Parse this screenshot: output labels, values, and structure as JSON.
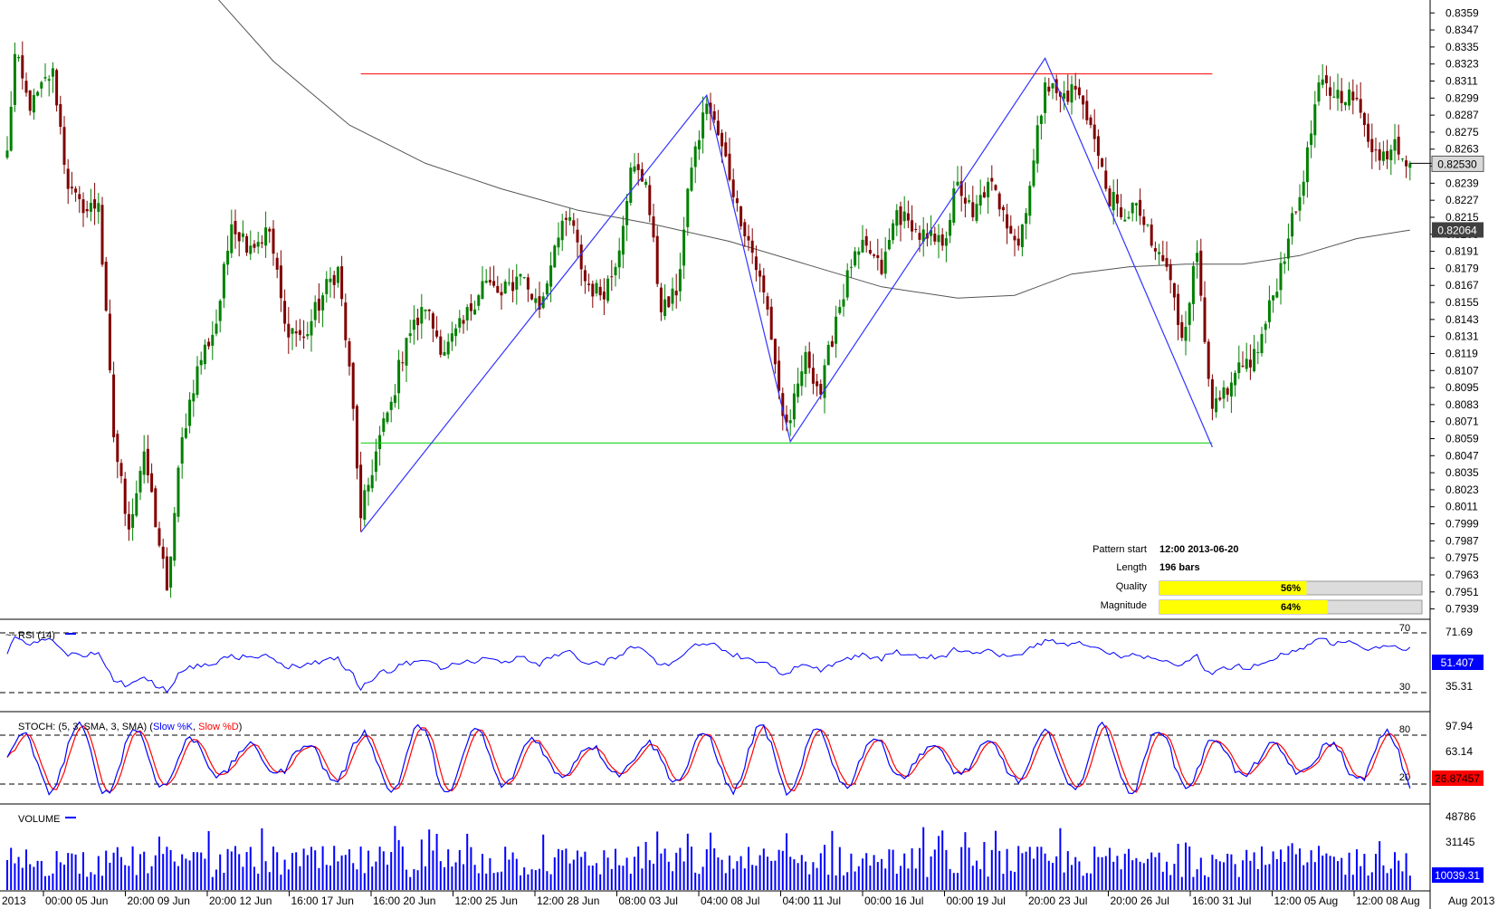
{
  "chart_data": [
    {
      "type": "candlestick",
      "panel": "price",
      "title": "",
      "y_ticks": [
        "0.8359",
        "0.8347",
        "0.8335",
        "0.8323",
        "0.8311",
        "0.8299",
        "0.8287",
        "0.8275",
        "0.8263",
        "0.8251",
        "0.8239",
        "0.8227",
        "0.8215",
        "0.8203",
        "0.8191",
        "0.8179",
        "0.8167",
        "0.8155",
        "0.8143",
        "0.8131",
        "0.8119",
        "0.8107",
        "0.8095",
        "0.8083",
        "0.8071",
        "0.8059",
        "0.8047",
        "0.8035",
        "0.8023",
        "0.8011",
        "0.7999",
        "0.7987",
        "0.7975",
        "0.7963",
        "0.7951",
        "0.7939"
      ],
      "ylim": [
        0.7933,
        0.8363
      ],
      "x_ticks": [
        "2013",
        "00:00 05 Jun",
        "20:00 09 Jun",
        "20:00 12 Jun",
        "16:00 17 Jun",
        "16:00 20 Jun",
        "12:00 25 Jun",
        "12:00 28 Jun",
        "08:00 03 Jul",
        "04:00 08 Jul",
        "04:00 11 Jul",
        "00:00 16 Jul",
        "00:00 19 Jul",
        "20:00 23 Jul",
        "20:00 26 Jul",
        "16:00 31 Jul",
        "12:00 05 Aug",
        "12:00 08 Aug",
        "Aug 2013"
      ],
      "last_price": "0.82530",
      "ma_label": "0.82064",
      "ma_value": 0.82064,
      "colors": {
        "up": "#008000",
        "down": "#800000",
        "ma": "#555555",
        "pattern": "#3333ff",
        "resistance": "#ff0000",
        "support": "#00cc00",
        "last_bg": "#d9d9d9"
      },
      "pattern": {
        "type": "zigzag",
        "points": [
          {
            "bar": 93,
            "price": 0.7993
          },
          {
            "bar": 184,
            "price": 0.8301
          },
          {
            "bar": 206,
            "price": 0.8057
          },
          {
            "bar": 273,
            "price": 0.8327
          },
          {
            "bar": 317,
            "price": 0.8053
          }
        ],
        "resistance": {
          "price": 0.8316,
          "from_bar": 93,
          "to_bar": 317
        },
        "support": {
          "price": 0.8056,
          "from_bar": 93,
          "to_bar": 317
        }
      },
      "info": {
        "pattern_start_label": "Pattern start",
        "pattern_start": "12:00 2013-06-20",
        "length_label": "Length",
        "length": "196 bars",
        "quality_label": "Quality",
        "quality": 56,
        "quality_text": "56%",
        "magnitude_label": "Magnitude",
        "magnitude": 64,
        "magnitude_text": "64%"
      },
      "anchors": [
        {
          "bar": 0,
          "price": 0.8262
        },
        {
          "bar": 2,
          "price": 0.833
        },
        {
          "bar": 6,
          "price": 0.829
        },
        {
          "bar": 12,
          "price": 0.832
        },
        {
          "bar": 16,
          "price": 0.8235
        },
        {
          "bar": 20,
          "price": 0.8218
        },
        {
          "bar": 24,
          "price": 0.8225
        },
        {
          "bar": 28,
          "price": 0.806
        },
        {
          "bar": 32,
          "price": 0.7995
        },
        {
          "bar": 36,
          "price": 0.805
        },
        {
          "bar": 42,
          "price": 0.7952
        },
        {
          "bar": 46,
          "price": 0.806
        },
        {
          "bar": 50,
          "price": 0.811
        },
        {
          "bar": 55,
          "price": 0.814
        },
        {
          "bar": 59,
          "price": 0.821
        },
        {
          "bar": 64,
          "price": 0.8195
        },
        {
          "bar": 69,
          "price": 0.8205
        },
        {
          "bar": 73,
          "price": 0.814
        },
        {
          "bar": 78,
          "price": 0.813
        },
        {
          "bar": 83,
          "price": 0.816
        },
        {
          "bar": 87,
          "price": 0.818
        },
        {
          "bar": 91,
          "price": 0.808
        },
        {
          "bar": 93,
          "price": 0.8003
        },
        {
          "bar": 97,
          "price": 0.805
        },
        {
          "bar": 101,
          "price": 0.8085
        },
        {
          "bar": 105,
          "price": 0.813
        },
        {
          "bar": 110,
          "price": 0.815
        },
        {
          "bar": 115,
          "price": 0.812
        },
        {
          "bar": 120,
          "price": 0.814
        },
        {
          "bar": 125,
          "price": 0.817
        },
        {
          "bar": 130,
          "price": 0.816
        },
        {
          "bar": 135,
          "price": 0.8175
        },
        {
          "bar": 140,
          "price": 0.815
        },
        {
          "bar": 144,
          "price": 0.8195
        },
        {
          "bar": 148,
          "price": 0.8215
        },
        {
          "bar": 152,
          "price": 0.817
        },
        {
          "bar": 156,
          "price": 0.816
        },
        {
          "bar": 160,
          "price": 0.818
        },
        {
          "bar": 164,
          "price": 0.825
        },
        {
          "bar": 168,
          "price": 0.824
        },
        {
          "bar": 172,
          "price": 0.8148
        },
        {
          "bar": 176,
          "price": 0.816
        },
        {
          "bar": 180,
          "price": 0.825
        },
        {
          "bar": 184,
          "price": 0.8295
        },
        {
          "bar": 188,
          "price": 0.8265
        },
        {
          "bar": 192,
          "price": 0.8225
        },
        {
          "bar": 196,
          "price": 0.819
        },
        {
          "bar": 200,
          "price": 0.815
        },
        {
          "bar": 204,
          "price": 0.8075
        },
        {
          "bar": 206,
          "price": 0.8072
        },
        {
          "bar": 210,
          "price": 0.812
        },
        {
          "bar": 214,
          "price": 0.809
        },
        {
          "bar": 218,
          "price": 0.8145
        },
        {
          "bar": 222,
          "price": 0.818
        },
        {
          "bar": 226,
          "price": 0.8195
        },
        {
          "bar": 230,
          "price": 0.8175
        },
        {
          "bar": 234,
          "price": 0.822
        },
        {
          "bar": 238,
          "price": 0.8205
        },
        {
          "bar": 242,
          "price": 0.82
        },
        {
          "bar": 246,
          "price": 0.8195
        },
        {
          "bar": 250,
          "price": 0.824
        },
        {
          "bar": 254,
          "price": 0.8215
        },
        {
          "bar": 258,
          "price": 0.824
        },
        {
          "bar": 262,
          "price": 0.822
        },
        {
          "bar": 266,
          "price": 0.8195
        },
        {
          "bar": 270,
          "price": 0.8255
        },
        {
          "bar": 273,
          "price": 0.831
        },
        {
          "bar": 277,
          "price": 0.83
        },
        {
          "bar": 281,
          "price": 0.8305
        },
        {
          "bar": 285,
          "price": 0.828
        },
        {
          "bar": 289,
          "price": 0.8235
        },
        {
          "bar": 293,
          "price": 0.8215
        },
        {
          "bar": 297,
          "price": 0.8225
        },
        {
          "bar": 301,
          "price": 0.8195
        },
        {
          "bar": 305,
          "price": 0.818
        },
        {
          "bar": 309,
          "price": 0.813
        },
        {
          "bar": 313,
          "price": 0.819
        },
        {
          "bar": 317,
          "price": 0.808
        },
        {
          "bar": 321,
          "price": 0.809
        },
        {
          "bar": 325,
          "price": 0.811
        },
        {
          "bar": 329,
          "price": 0.812
        },
        {
          "bar": 333,
          "price": 0.816
        },
        {
          "bar": 337,
          "price": 0.82
        },
        {
          "bar": 341,
          "price": 0.824
        },
        {
          "bar": 345,
          "price": 0.831
        },
        {
          "bar": 349,
          "price": 0.83
        },
        {
          "bar": 353,
          "price": 0.8305
        },
        {
          "bar": 357,
          "price": 0.828
        },
        {
          "bar": 361,
          "price": 0.8255
        },
        {
          "bar": 365,
          "price": 0.827
        },
        {
          "bar": 369,
          "price": 0.8253
        }
      ],
      "ma_points": [
        {
          "bar": 50,
          "price": 0.8385
        },
        {
          "bar": 70,
          "price": 0.8325
        },
        {
          "bar": 90,
          "price": 0.828
        },
        {
          "bar": 110,
          "price": 0.8253
        },
        {
          "bar": 130,
          "price": 0.8235
        },
        {
          "bar": 150,
          "price": 0.822
        },
        {
          "bar": 170,
          "price": 0.821
        },
        {
          "bar": 190,
          "price": 0.8198
        },
        {
          "bar": 210,
          "price": 0.8182
        },
        {
          "bar": 230,
          "price": 0.8166
        },
        {
          "bar": 250,
          "price": 0.8158
        },
        {
          "bar": 265,
          "price": 0.816
        },
        {
          "bar": 280,
          "price": 0.8175
        },
        {
          "bar": 295,
          "price": 0.818
        },
        {
          "bar": 310,
          "price": 0.8182
        },
        {
          "bar": 325,
          "price": 0.8182
        },
        {
          "bar": 340,
          "price": 0.8188
        },
        {
          "bar": 355,
          "price": 0.82
        },
        {
          "bar": 369,
          "price": 0.8206
        }
      ]
    },
    {
      "type": "line",
      "panel": "rsi",
      "title": "RSI (14)",
      "ylim": [
        20,
        80
      ],
      "levels": [
        {
          "value": 70,
          "label": "70"
        },
        {
          "value": 30,
          "label": "30"
        }
      ],
      "y_ticks": [
        "71.69",
        "35.31"
      ],
      "last_value": "51.407",
      "series": [
        {
          "name": "RSI (14)",
          "color": "#0000ff"
        }
      ]
    },
    {
      "type": "line",
      "panel": "stoch",
      "title": "STOCH: (5, 3, SMA, 3, SMA)",
      "ylim": [
        0,
        100
      ],
      "levels": [
        {
          "value": 80,
          "label": "80"
        },
        {
          "value": 20,
          "label": "20"
        }
      ],
      "y_ticks": [
        "97.94",
        "63.14"
      ],
      "last_value": "26.87457",
      "series": [
        {
          "name": "Slow %K",
          "color": "#0000ff"
        },
        {
          "name": "Slow %D",
          "color": "#ff0000"
        }
      ]
    },
    {
      "type": "bar",
      "panel": "volume",
      "title": "VOLUME",
      "ylim": [
        0,
        52000
      ],
      "y_ticks": [
        "48786",
        "31145"
      ],
      "last_value": "10039.31",
      "series": [
        {
          "name": "VOLUME",
          "color": "#0000ff"
        }
      ]
    }
  ]
}
